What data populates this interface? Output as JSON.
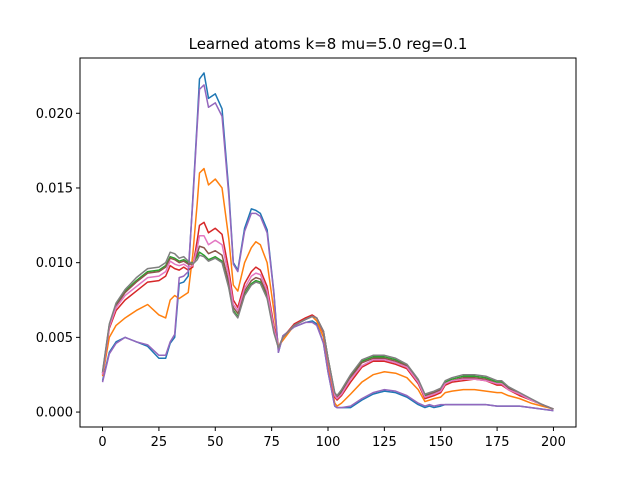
{
  "chart_data": {
    "type": "line",
    "title": "Learned atoms k=8 mu=5.0 reg=0.1",
    "xlabel": "",
    "ylabel": "",
    "xlim": [
      -10,
      210
    ],
    "ylim": [
      -0.001,
      0.0237
    ],
    "xticks": [
      0,
      25,
      50,
      75,
      100,
      125,
      150,
      175,
      200
    ],
    "xtick_labels": [
      "0",
      "25",
      "50",
      "75",
      "100",
      "125",
      "150",
      "175",
      "200"
    ],
    "yticks": [
      0.0,
      0.005,
      0.01,
      0.015,
      0.02
    ],
    "ytick_labels": [
      "0.000",
      "0.005",
      "0.010",
      "0.015",
      "0.020"
    ],
    "grid": false,
    "legend": "none",
    "x": [
      0,
      3,
      6,
      10,
      15,
      20,
      25,
      28,
      30,
      32,
      34,
      36,
      38,
      40,
      42,
      43,
      45,
      47,
      50,
      53,
      56,
      58,
      60,
      63,
      66,
      68,
      70,
      73,
      76,
      78,
      80,
      85,
      90,
      93,
      95,
      98,
      100,
      103,
      104,
      106,
      110,
      115,
      120,
      125,
      130,
      135,
      140,
      143,
      145,
      147,
      150,
      152,
      155,
      160,
      165,
      170,
      175,
      177,
      180,
      185,
      190,
      195,
      200
    ],
    "series": [
      {
        "color": "#1f77b4",
        "values": [
          0.0021,
          0.004,
          0.0047,
          0.005,
          0.0047,
          0.0044,
          0.0036,
          0.0036,
          0.0046,
          0.005,
          0.0086,
          0.0087,
          0.0091,
          0.0142,
          0.0195,
          0.0223,
          0.0227,
          0.021,
          0.0213,
          0.0203,
          0.0148,
          0.01,
          0.0095,
          0.0123,
          0.0136,
          0.0135,
          0.0133,
          0.0122,
          0.008,
          0.004,
          0.0051,
          0.0057,
          0.006,
          0.0061,
          0.0059,
          0.0046,
          0.0027,
          0.0004,
          0.0003,
          0.0003,
          0.0003,
          0.0008,
          0.0012,
          0.0014,
          0.0013,
          0.001,
          0.0005,
          0.0003,
          0.0004,
          0.0003,
          0.0004,
          0.0005,
          0.0005,
          0.0005,
          0.0005,
          0.0005,
          0.0004,
          0.0004,
          0.0004,
          0.0004,
          0.0003,
          0.0002,
          0.0001
        ]
      },
      {
        "color": "#ff7f0e",
        "values": [
          0.0024,
          0.005,
          0.0058,
          0.0063,
          0.0068,
          0.0072,
          0.0065,
          0.0063,
          0.0075,
          0.0078,
          0.0076,
          0.0078,
          0.008,
          0.0105,
          0.014,
          0.016,
          0.0163,
          0.0152,
          0.0156,
          0.015,
          0.0116,
          0.0085,
          0.0081,
          0.01,
          0.011,
          0.0114,
          0.0112,
          0.01,
          0.0068,
          0.0044,
          0.0048,
          0.0058,
          0.0063,
          0.0064,
          0.0061,
          0.005,
          0.003,
          0.0006,
          0.0004,
          0.0006,
          0.0012,
          0.002,
          0.0025,
          0.0027,
          0.0026,
          0.0023,
          0.0015,
          0.0007,
          0.0008,
          0.0009,
          0.001,
          0.0013,
          0.0014,
          0.0015,
          0.0015,
          0.0014,
          0.0013,
          0.0013,
          0.0011,
          0.0009,
          0.0006,
          0.0004,
          0.0002
        ]
      },
      {
        "color": "#2ca02c",
        "values": [
          0.0026,
          0.0058,
          0.0072,
          0.0081,
          0.0088,
          0.0094,
          0.0095,
          0.0098,
          0.0104,
          0.0103,
          0.0101,
          0.0102,
          0.01,
          0.01,
          0.0104,
          0.0107,
          0.0105,
          0.0102,
          0.0104,
          0.0101,
          0.0084,
          0.0068,
          0.0064,
          0.0079,
          0.0086,
          0.0088,
          0.0087,
          0.0077,
          0.0054,
          0.0043,
          0.005,
          0.0058,
          0.0062,
          0.0064,
          0.0063,
          0.0054,
          0.0036,
          0.0012,
          0.001,
          0.0014,
          0.0024,
          0.0034,
          0.0037,
          0.0037,
          0.0035,
          0.0031,
          0.0021,
          0.0011,
          0.0012,
          0.0013,
          0.0015,
          0.002,
          0.0022,
          0.0024,
          0.0024,
          0.0023,
          0.002,
          0.002,
          0.0016,
          0.0012,
          0.0008,
          0.0005,
          0.0002
        ]
      },
      {
        "color": "#d62728",
        "values": [
          0.0025,
          0.0056,
          0.0068,
          0.0075,
          0.0081,
          0.0087,
          0.0088,
          0.0091,
          0.0098,
          0.0096,
          0.0095,
          0.0097,
          0.0095,
          0.0097,
          0.0115,
          0.0125,
          0.0127,
          0.012,
          0.0123,
          0.0119,
          0.0095,
          0.0075,
          0.007,
          0.0086,
          0.0094,
          0.0097,
          0.0095,
          0.0084,
          0.0058,
          0.0043,
          0.005,
          0.0059,
          0.0063,
          0.0065,
          0.0063,
          0.0053,
          0.0035,
          0.001,
          0.0008,
          0.0011,
          0.002,
          0.003,
          0.0034,
          0.0034,
          0.0032,
          0.0029,
          0.0019,
          0.0009,
          0.001,
          0.0011,
          0.0013,
          0.0018,
          0.002,
          0.0021,
          0.0022,
          0.0021,
          0.0018,
          0.0018,
          0.0015,
          0.0011,
          0.0008,
          0.0005,
          0.0002
        ]
      },
      {
        "color": "#9467bd",
        "values": [
          0.002,
          0.0039,
          0.0046,
          0.005,
          0.0047,
          0.0045,
          0.0038,
          0.0038,
          0.0047,
          0.0052,
          0.009,
          0.0091,
          0.0094,
          0.014,
          0.0192,
          0.0216,
          0.0219,
          0.0204,
          0.0207,
          0.0198,
          0.0145,
          0.0099,
          0.0094,
          0.0121,
          0.0133,
          0.0133,
          0.0131,
          0.012,
          0.0079,
          0.004,
          0.0051,
          0.0057,
          0.006,
          0.006,
          0.0058,
          0.0046,
          0.0027,
          0.0004,
          0.0003,
          0.0003,
          0.0004,
          0.0009,
          0.0013,
          0.0015,
          0.0014,
          0.0011,
          0.0006,
          0.0004,
          0.0005,
          0.0004,
          0.0005,
          0.0005,
          0.0005,
          0.0005,
          0.0005,
          0.0005,
          0.0004,
          0.0004,
          0.0004,
          0.0004,
          0.0003,
          0.0002,
          0.0001
        ]
      },
      {
        "color": "#8c564b",
        "values": [
          0.0026,
          0.0058,
          0.0071,
          0.008,
          0.0087,
          0.0093,
          0.0094,
          0.0097,
          0.0103,
          0.0102,
          0.01,
          0.0101,
          0.0099,
          0.0099,
          0.0106,
          0.0111,
          0.011,
          0.0106,
          0.0108,
          0.0105,
          0.0087,
          0.007,
          0.0066,
          0.0081,
          0.0088,
          0.009,
          0.0089,
          0.0079,
          0.0055,
          0.0043,
          0.005,
          0.0058,
          0.0062,
          0.0064,
          0.0063,
          0.0054,
          0.0036,
          0.0012,
          0.001,
          0.0013,
          0.0023,
          0.0033,
          0.0036,
          0.0036,
          0.0034,
          0.0031,
          0.002,
          0.001,
          0.0012,
          0.0013,
          0.0015,
          0.0019,
          0.0021,
          0.0023,
          0.0023,
          0.0022,
          0.0019,
          0.0019,
          0.0016,
          0.0012,
          0.0008,
          0.0005,
          0.0002
        ]
      },
      {
        "color": "#e377c2",
        "values": [
          0.0025,
          0.0057,
          0.007,
          0.0078,
          0.0084,
          0.009,
          0.0091,
          0.0094,
          0.0101,
          0.0099,
          0.0098,
          0.0099,
          0.0097,
          0.0098,
          0.011,
          0.0118,
          0.0118,
          0.0112,
          0.0115,
          0.0112,
          0.0091,
          0.0072,
          0.0068,
          0.0083,
          0.0091,
          0.0093,
          0.0092,
          0.0081,
          0.0056,
          0.0043,
          0.005,
          0.0058,
          0.0062,
          0.0064,
          0.0063,
          0.0054,
          0.0035,
          0.0011,
          0.0009,
          0.0012,
          0.0022,
          0.0031,
          0.0035,
          0.0035,
          0.0033,
          0.003,
          0.002,
          0.001,
          0.0011,
          0.0012,
          0.0014,
          0.0019,
          0.0021,
          0.0022,
          0.0022,
          0.0021,
          0.0019,
          0.0019,
          0.0015,
          0.0012,
          0.0008,
          0.0005,
          0.0002
        ]
      },
      {
        "color": "#7f7f7f",
        "values": [
          0.0027,
          0.0059,
          0.0073,
          0.0082,
          0.009,
          0.0096,
          0.0097,
          0.01,
          0.0107,
          0.0106,
          0.0103,
          0.0104,
          0.0101,
          0.0099,
          0.0102,
          0.0105,
          0.0104,
          0.0101,
          0.0103,
          0.01,
          0.0083,
          0.0067,
          0.0063,
          0.0078,
          0.0085,
          0.0087,
          0.0086,
          0.0076,
          0.0053,
          0.0043,
          0.005,
          0.0058,
          0.0062,
          0.0064,
          0.0063,
          0.0054,
          0.0036,
          0.0013,
          0.0011,
          0.0015,
          0.0025,
          0.0035,
          0.0038,
          0.0038,
          0.0036,
          0.0032,
          0.0022,
          0.0012,
          0.0013,
          0.0014,
          0.0016,
          0.0021,
          0.0023,
          0.0025,
          0.0025,
          0.0024,
          0.0021,
          0.0021,
          0.0017,
          0.0013,
          0.0009,
          0.0005,
          0.0002
        ]
      }
    ]
  }
}
